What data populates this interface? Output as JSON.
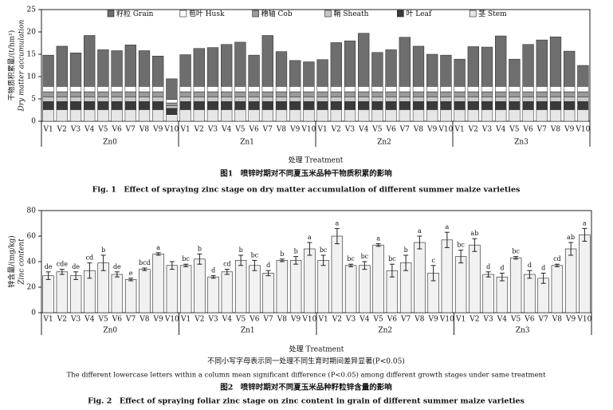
{
  "chart_data": [
    {
      "type": "stacked_bar",
      "y_label": "干物质积累量/(t/hm²)",
      "y_label_en": "Dry matter accumulation",
      "x_label": "处理 Treatment",
      "caption": [
        "图1　喷锌时期对不同夏玉米品种干物质积累的影响",
        "Fig. 1　Effect of spraying zinc stage on dry matter accumulation of different summer maize varieties"
      ],
      "groups": [
        "Zn0",
        "Zn1",
        "Zn2",
        "Zn3"
      ],
      "categories": [
        "V1",
        "V2",
        "V3",
        "V4",
        "V5",
        "V6",
        "V7",
        "V8",
        "V9",
        "V10",
        "V1",
        "V2",
        "V3",
        "V4",
        "V5",
        "V6",
        "V7",
        "V8",
        "V9",
        "V10",
        "V1",
        "V2",
        "V3",
        "V4",
        "V5",
        "V6",
        "V7",
        "V8",
        "V9",
        "V10",
        "V1",
        "V2",
        "V3",
        "V4",
        "V5",
        "V6",
        "V7",
        "V8",
        "V9",
        "V10"
      ],
      "ylim": [
        0,
        25
      ],
      "yticks": [
        0,
        5,
        10,
        15,
        20,
        25
      ],
      "series": [
        {
          "name": "籽粒 Grain",
          "color": "#6e6e6e",
          "values": [
            7.0,
            9.0,
            7.5,
            11.4,
            8.2,
            8.0,
            9.3,
            8.0,
            6.8,
            4.6,
            7.1,
            8.5,
            8.7,
            9.4,
            9.9,
            7.0,
            11.4,
            7.8,
            5.8,
            5.5,
            6.0,
            9.8,
            10.2,
            11.9,
            7.6,
            8.2,
            11.0,
            9.0,
            7.2,
            7.0,
            6.1,
            8.9,
            8.8,
            11.3,
            6.1,
            9.4,
            10.4,
            11.1,
            7.9,
            4.7
          ]
        },
        {
          "name": "苞叶 Husk",
          "color": "#ffffff",
          "values": [
            1.2,
            1.2,
            1.2,
            1.2,
            1.2,
            1.2,
            1.2,
            1.2,
            1.2,
            0.8,
            1.2,
            1.2,
            1.2,
            1.2,
            1.2,
            1.2,
            1.2,
            1.2,
            1.2,
            1.2,
            1.2,
            1.2,
            1.2,
            1.2,
            1.2,
            1.2,
            1.2,
            1.2,
            1.2,
            1.2,
            1.2,
            1.2,
            1.2,
            1.2,
            1.2,
            1.2,
            1.2,
            1.2,
            1.2,
            1.2
          ]
        },
        {
          "name": "穗轴 Cob",
          "color": "#9a9a9a",
          "values": [
            1.2,
            1.2,
            1.2,
            1.2,
            1.2,
            1.2,
            1.2,
            1.2,
            1.2,
            0.6,
            1.2,
            1.2,
            1.2,
            1.2,
            1.2,
            1.2,
            1.2,
            1.2,
            1.2,
            1.2,
            1.2,
            1.2,
            1.2,
            1.2,
            1.2,
            1.2,
            1.2,
            1.2,
            1.2,
            1.2,
            1.2,
            1.2,
            1.2,
            1.2,
            1.2,
            1.2,
            1.2,
            1.2,
            1.2,
            1.2
          ]
        },
        {
          "name": "鞘 Sheath",
          "color": "#c8c8c8",
          "values": [
            1.0,
            1.0,
            1.0,
            1.0,
            1.0,
            1.0,
            1.0,
            1.0,
            1.0,
            0.6,
            1.0,
            1.0,
            1.0,
            1.0,
            1.0,
            1.0,
            1.0,
            1.0,
            1.0,
            1.0,
            1.0,
            1.0,
            1.0,
            1.0,
            1.0,
            1.0,
            1.0,
            1.0,
            1.0,
            1.0,
            1.0,
            1.0,
            1.0,
            1.0,
            1.0,
            1.0,
            1.0,
            1.0,
            1.0,
            1.0
          ]
        },
        {
          "name": "叶 Leaf",
          "color": "#3a3a3a",
          "values": [
            1.8,
            1.8,
            1.8,
            1.8,
            1.8,
            1.8,
            1.8,
            1.8,
            1.8,
            1.4,
            1.8,
            1.8,
            1.8,
            1.8,
            1.8,
            1.8,
            1.8,
            1.8,
            1.8,
            1.8,
            1.8,
            1.8,
            1.8,
            1.8,
            1.8,
            1.8,
            1.8,
            1.8,
            1.8,
            1.8,
            1.8,
            1.8,
            1.8,
            1.8,
            1.8,
            1.8,
            1.8,
            1.8,
            1.8,
            1.8
          ]
        },
        {
          "name": "茎 Stem",
          "color": "#e6e6e6",
          "values": [
            2.6,
            2.6,
            2.6,
            2.6,
            2.6,
            2.6,
            2.6,
            2.6,
            2.6,
            1.5,
            2.6,
            2.6,
            2.6,
            2.6,
            2.6,
            2.6,
            2.6,
            2.6,
            2.6,
            2.6,
            2.6,
            2.6,
            2.6,
            2.6,
            2.6,
            2.6,
            2.6,
            2.6,
            2.6,
            2.6,
            2.6,
            2.6,
            2.6,
            2.6,
            2.6,
            2.6,
            2.6,
            2.6,
            2.6,
            2.6
          ]
        }
      ]
    },
    {
      "type": "bar",
      "y_label": "锌含量/(mg/kg)",
      "y_label_en": "Zinc content",
      "x_label": "处理 Treatment",
      "notes": [
        "不同小写字母表示同一处理不同生育时期间差异显著(P<0.05)",
        "The different lowercase letters within a column mean significant difference (P<0.05) among different growth stages under same treatment"
      ],
      "caption": [
        "图2　喷锌时期对不同夏玉米品种籽粒锌含量的影响",
        "Fig. 2　Effect of spraying foliar zinc stage on zinc content in grain of different summer maize varieties"
      ],
      "groups": [
        "Zn0",
        "Zn1",
        "Zn2",
        "Zn3"
      ],
      "categories": [
        "V1",
        "V2",
        "V3",
        "V4",
        "V5",
        "V6",
        "V7",
        "V8",
        "V9",
        "V10",
        "V1",
        "V2",
        "V3",
        "V4",
        "V5",
        "V6",
        "V7",
        "V8",
        "V9",
        "V10",
        "V1",
        "V2",
        "V3",
        "V4",
        "V5",
        "V6",
        "V7",
        "V8",
        "V9",
        "V10",
        "V1",
        "V2",
        "V3",
        "V4",
        "V5",
        "V6",
        "V7",
        "V8",
        "V9",
        "V10"
      ],
      "ylim": [
        0,
        80
      ],
      "yticks": [
        0,
        20,
        40,
        60,
        80
      ],
      "color": "#f1f1f1",
      "values": [
        29,
        32,
        29,
        33,
        39,
        30,
        26,
        34,
        46,
        37,
        37,
        42,
        28,
        32,
        41,
        37,
        31,
        41,
        41,
        50,
        41,
        60,
        37,
        37,
        53,
        33,
        39,
        55,
        31,
        57,
        44,
        53,
        30,
        28,
        43,
        30,
        27,
        37,
        50,
        61
      ],
      "errors": [
        3,
        2,
        3,
        6,
        6,
        2,
        1,
        1,
        1,
        3,
        1,
        4,
        1,
        2,
        4,
        4,
        2,
        1,
        3,
        5,
        4,
        6,
        1,
        3,
        1,
        5,
        6,
        5,
        6,
        6,
        5,
        5,
        2,
        3,
        1,
        3,
        4,
        1,
        5,
        5
      ],
      "letters": [
        "de",
        "cde",
        "de",
        "cd",
        "b",
        "de",
        "e",
        "bcd",
        "a",
        null,
        "bc",
        "b",
        "d",
        "cd",
        "b",
        "bc",
        "d",
        "b",
        "b",
        "a",
        "bc",
        "a",
        "bc",
        "bc",
        "a",
        "bc",
        "b",
        "a",
        "c",
        "a",
        "bc",
        "ab",
        "d",
        "d",
        "bc",
        "d",
        "d",
        "cd",
        "ab",
        "a"
      ]
    }
  ]
}
